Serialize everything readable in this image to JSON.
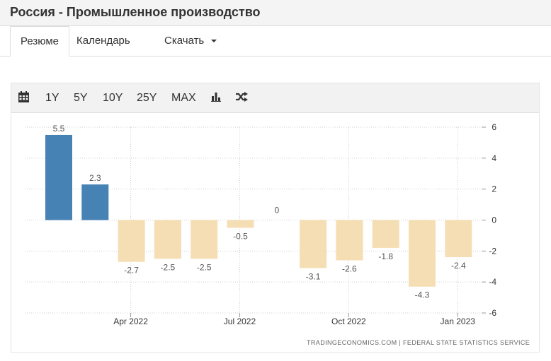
{
  "header": {
    "title": "Россия - Промышленное производство"
  },
  "tabs": [
    {
      "label": "Резюме"
    },
    {
      "label": "Календарь"
    },
    {
      "label": "Скачать"
    }
  ],
  "toolbar": {
    "calendar_icon": "calendar-icon",
    "ranges": [
      "1Y",
      "5Y",
      "10Y",
      "25Y",
      "MAX"
    ],
    "bar_chart_icon": "bar-chart-icon",
    "shuffle_icon": "shuffle-icon"
  },
  "chart_data": {
    "type": "bar",
    "values": [
      5.5,
      2.3,
      -2.7,
      -2.5,
      -2.5,
      -0.5,
      0,
      -3.1,
      -2.6,
      -1.8,
      -4.3,
      -2.4
    ],
    "data_labels": [
      "5.5",
      "2.3",
      "-2.7",
      "-2.5",
      "-2.5",
      "-0.5",
      "0",
      "-3.1",
      "-2.6",
      "-1.8",
      "-4.3",
      "-2.4"
    ],
    "positive_color": "#4682b4",
    "negative_color": "#f5deb3",
    "x_ticks": [
      {
        "index": 2.35,
        "label": "Apr 2022"
      },
      {
        "index": 5.35,
        "label": "Jul 2022"
      },
      {
        "index": 8.35,
        "label": "Oct 2022"
      },
      {
        "index": 11.35,
        "label": "Jan 2023"
      }
    ],
    "y_ticks": [
      6,
      4,
      2,
      0,
      -2,
      -4,
      -6
    ],
    "ylim": [
      -6,
      6
    ],
    "grid": true,
    "y_axis_side": "right",
    "source": "TRADINGECONOMICS.COM  |  FEDERAL STATE STATISTICS SERVICE"
  }
}
